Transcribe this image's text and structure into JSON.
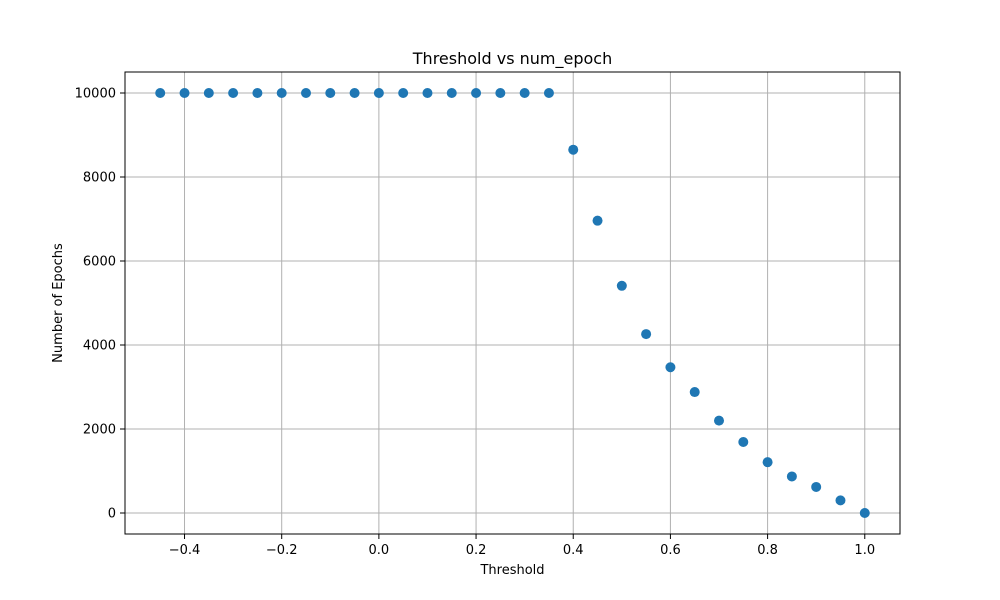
{
  "chart_data": {
    "type": "scatter",
    "title": "Threshold vs num_epoch",
    "xlabel": "Threshold",
    "ylabel": "Number of Epochs",
    "xlim": [
      -0.5225,
      1.0725
    ],
    "ylim": [
      -500,
      10500
    ],
    "grid": true,
    "x_ticks": [
      -0.4,
      -0.2,
      0.0,
      0.2,
      0.4,
      0.6,
      0.8,
      1.0
    ],
    "x_tick_labels": [
      "−0.4",
      "−0.2",
      "0.0",
      "0.2",
      "0.4",
      "0.6",
      "0.8",
      "1.0"
    ],
    "y_ticks": [
      0,
      2000,
      4000,
      6000,
      8000,
      10000
    ],
    "y_tick_labels": [
      "0",
      "2000",
      "4000",
      "6000",
      "8000",
      "10000"
    ],
    "series": [
      {
        "color": "#1f77b4",
        "x": [
          -0.45,
          -0.4,
          -0.35,
          -0.3,
          -0.25,
          -0.2,
          -0.15,
          -0.1,
          -0.05,
          0.0,
          0.05,
          0.1,
          0.15,
          0.2,
          0.25,
          0.3,
          0.35,
          0.4,
          0.45,
          0.5,
          0.55,
          0.6,
          0.65,
          0.7,
          0.75,
          0.8,
          0.85,
          0.9,
          0.95,
          1.0
        ],
        "y": [
          10000,
          10000,
          10000,
          10000,
          10000,
          10000,
          10000,
          10000,
          10000,
          10000,
          10000,
          10000,
          10000,
          10000,
          10000,
          10000,
          10000,
          8650,
          6960,
          5410,
          4260,
          3470,
          2880,
          2200,
          1690,
          1210,
          870,
          620,
          300,
          0
        ]
      }
    ]
  }
}
